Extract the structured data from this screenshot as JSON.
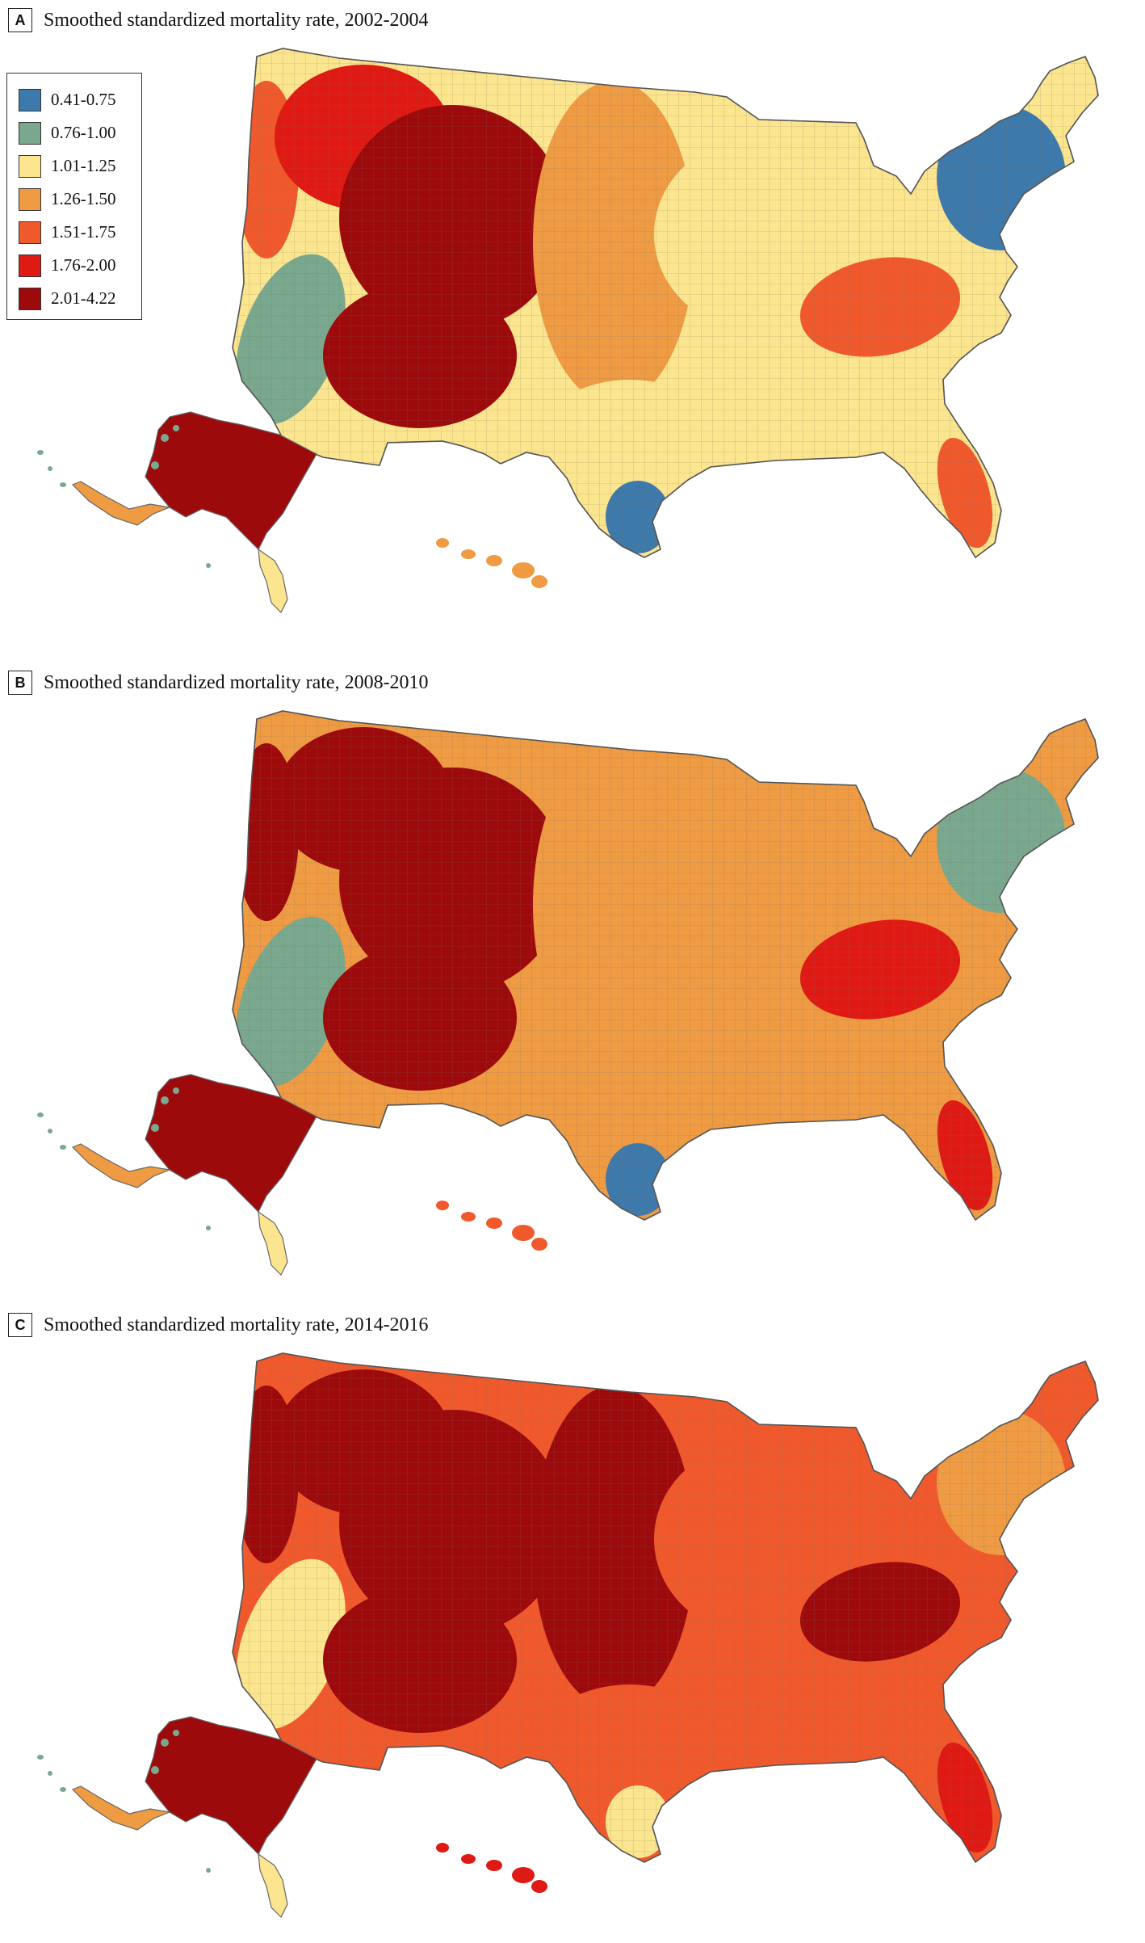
{
  "legend": {
    "items": [
      {
        "label": "0.41-0.75",
        "color": "#3d7aab"
      },
      {
        "label": "0.76-1.00",
        "color": "#7aa88e"
      },
      {
        "label": "1.01-1.25",
        "color": "#fbe58e"
      },
      {
        "label": "1.26-1.50",
        "color": "#ee9b43"
      },
      {
        "label": "1.51-1.75",
        "color": "#f0592c"
      },
      {
        "label": "1.76-2.00",
        "color": "#df1a14"
      },
      {
        "label": "2.01-4.22",
        "color": "#9c0a0c"
      }
    ]
  },
  "panels": [
    {
      "letter": "A",
      "title": "Smoothed standardized mortality rate, 2002-2004",
      "period": "2002-2004",
      "regions": {
        "west_coast": 4,
        "northwest": 5,
        "mountain": 6,
        "southwest": 6,
        "california": 1,
        "plains": 3,
        "midwest": 2,
        "northeast": 0,
        "appalachia": 4,
        "southeast": 2,
        "texas": 2,
        "south_texas": 0,
        "florida": 4,
        "alaska": 6,
        "hawaii": 3
      }
    },
    {
      "letter": "B",
      "title": "Smoothed standardized mortality rate, 2008-2010",
      "period": "2008-2010",
      "regions": {
        "west_coast": 6,
        "northwest": 6,
        "mountain": 6,
        "southwest": 6,
        "california": 1,
        "plains": 3,
        "midwest": 3,
        "northeast": 1,
        "appalachia": 5,
        "southeast": 3,
        "texas": 3,
        "south_texas": 0,
        "florida": 5,
        "alaska": 6,
        "hawaii": 4
      }
    },
    {
      "letter": "C",
      "title": "Smoothed standardized mortality rate, 2014-2016",
      "period": "2014-2016",
      "regions": {
        "west_coast": 6,
        "northwest": 6,
        "mountain": 6,
        "southwest": 6,
        "california": 2,
        "plains": 6,
        "midwest": 4,
        "northeast": 3,
        "appalachia": 6,
        "southeast": 4,
        "texas": 4,
        "south_texas": 2,
        "florida": 5,
        "alaska": 6,
        "hawaii": 5
      }
    }
  ]
}
